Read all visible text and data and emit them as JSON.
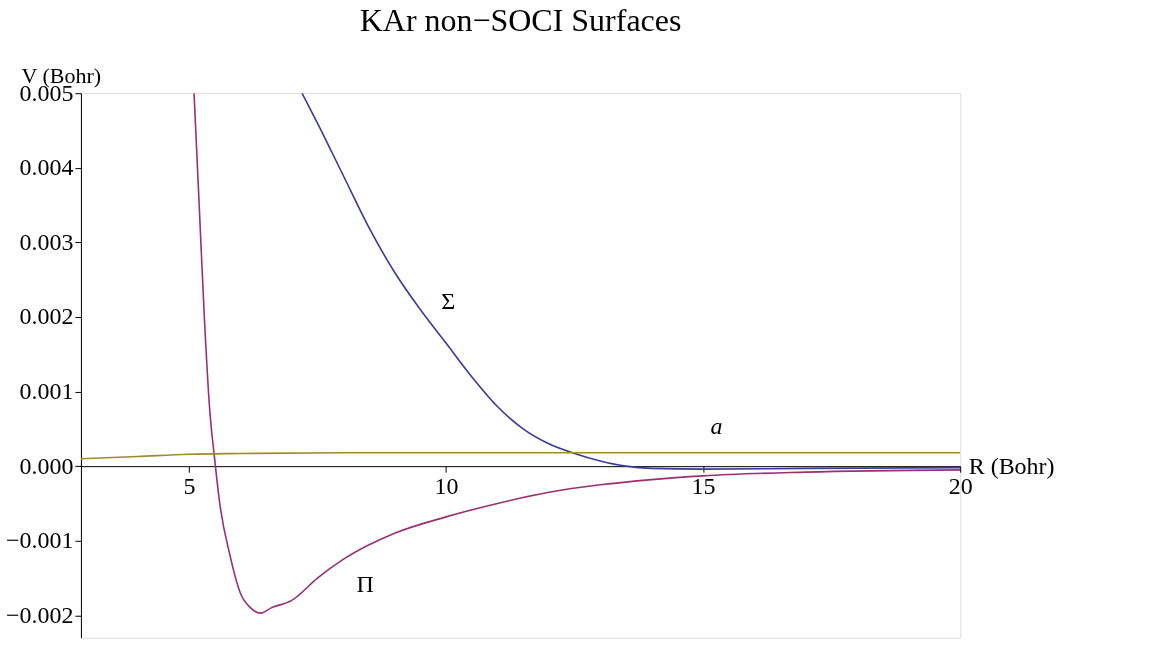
{
  "chart_data": {
    "type": "line",
    "title": "KAr non−SOCI Surfaces",
    "xlabel": "R (Bohr)",
    "ylabel": "V (Bohr)",
    "xlim": [
      2.9,
      20
    ],
    "ylim": [
      -0.0023,
      0.005
    ],
    "xticks": [
      5,
      10,
      15,
      20
    ],
    "yticks": [
      {
        "value": -0.002,
        "label": "−0.002"
      },
      {
        "value": -0.001,
        "label": "−0.001"
      },
      {
        "value": 0,
        "label": "0.000"
      },
      {
        "value": 0.001,
        "label": "0.001"
      },
      {
        "value": 0.002,
        "label": "0.002"
      },
      {
        "value": 0.003,
        "label": "0.003"
      },
      {
        "value": 0.004,
        "label": "0.004"
      },
      {
        "value": 0.005,
        "label": "0.005"
      }
    ],
    "grid": false,
    "legend": false,
    "marker": "none",
    "line_style": "solid",
    "series": [
      {
        "name": "Σ",
        "color": "#3a3a9c",
        "x": [
          7.2,
          7.5,
          8,
          8.5,
          9,
          9.5,
          10,
          10.5,
          11,
          11.5,
          12,
          12.5,
          13,
          13.5,
          14,
          15,
          17,
          20
        ],
        "values": [
          0.005,
          0.0046,
          0.0039,
          0.0032,
          0.0026,
          0.0021,
          0.00165,
          0.0012,
          0.0008,
          0.0005,
          0.0003,
          0.00017,
          7e-05,
          0.0,
          -3e-05,
          -4e-05,
          -3e-05,
          -2e-05
        ]
      },
      {
        "name": "Π",
        "color": "#9b2f6f",
        "x": [
          5.1,
          5.2,
          5.3,
          5.4,
          5.5,
          5.6,
          5.8,
          6.0,
          6.2,
          6.4,
          6.6,
          7.0,
          7.5,
          8,
          9,
          10,
          11,
          12,
          13,
          14,
          15,
          17,
          20
        ],
        "values": [
          0.005,
          0.0035,
          0.002,
          0.0008,
          0.0001,
          -0.0005,
          -0.0012,
          -0.0017,
          -0.0019,
          -0.00197,
          -0.0019,
          -0.0018,
          -0.0015,
          -0.00125,
          -0.0009,
          -0.00068,
          -0.0005,
          -0.00035,
          -0.00025,
          -0.00018,
          -0.00013,
          -8e-05,
          -5e-05
        ]
      },
      {
        "name": "a",
        "color": "#a08a2a",
        "x": [
          2.9,
          4,
          5,
          6,
          8,
          12,
          16,
          20
        ],
        "values": [
          0.0001,
          0.00013,
          0.00016,
          0.00017,
          0.00018,
          0.00018,
          0.00018,
          0.00018
        ]
      }
    ]
  }
}
